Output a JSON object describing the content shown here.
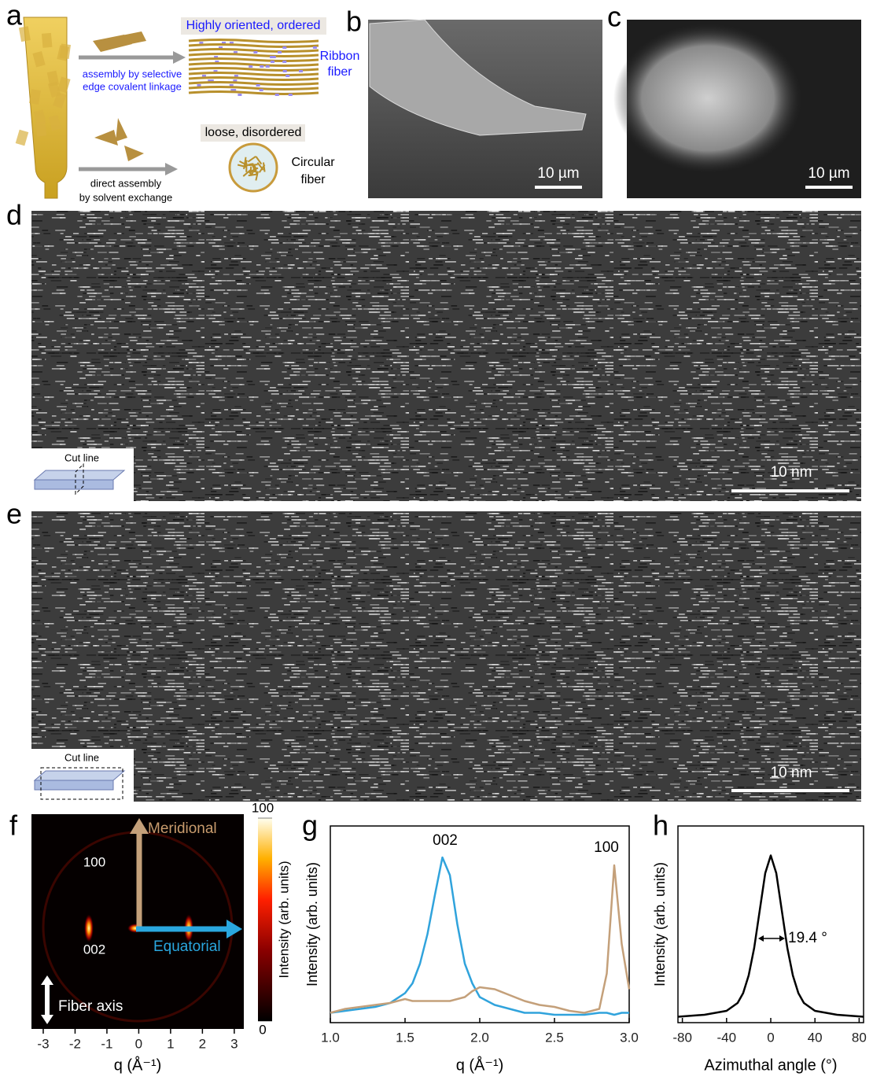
{
  "panels": {
    "a": {
      "label": "a",
      "ordered_title": "Highly oriented, ordered",
      "arrow1_lines": [
        "assembly by selective",
        "edge covalent linkage"
      ],
      "ribbon_lines": [
        "Ribbon",
        "fiber"
      ],
      "disordered_title": "loose, disordered",
      "arrow2_lines": [
        "direct assembly",
        "by solvent exchange"
      ],
      "circular_lines": [
        "Circular",
        "fiber"
      ]
    },
    "b": {
      "label": "b",
      "scale_bar": "10 µm"
    },
    "c": {
      "label": "c",
      "scale_bar": "10 µm"
    },
    "d": {
      "label": "d",
      "inset": "Cut line",
      "scale_bar": "10 nm"
    },
    "e": {
      "label": "e",
      "inset": "Cut line",
      "scale_bar": "10 nm"
    },
    "f": {
      "label": "f",
      "meridional": "Meridional",
      "ring": "100",
      "spot": "002",
      "equatorial": "Equatorial",
      "fiber_axis": "Fiber axis"
    },
    "g": {
      "label": "g"
    },
    "h": {
      "label": "h"
    }
  },
  "chart_data": [
    {
      "type": "image",
      "xlabel": "q (Å⁻¹)",
      "xlim": [
        -3.37,
        3.3
      ],
      "xticks": [
        -3,
        -2,
        -1,
        0,
        1,
        2,
        3
      ],
      "colorbar": {
        "label": "Intensity (arb. units)",
        "lim": [
          0,
          100
        ],
        "ticks": [
          0,
          100
        ]
      }
    },
    {
      "type": "line",
      "xlabel": "q (Å⁻¹)",
      "ylabel": "Intensity (arb. units)",
      "annotations": [
        "002",
        "100"
      ],
      "xlim": [
        1.0,
        3.0
      ],
      "ylim": [
        0,
        1
      ],
      "xticks": [
        {
          "value": 1.0,
          "label": "1.0"
        },
        1.5,
        {
          "value": 2.0,
          "label": "2.0"
        },
        2.5,
        {
          "value": 3.0,
          "label": "3.0"
        }
      ],
      "x": [
        1.0,
        1.1,
        1.2,
        1.3,
        1.4,
        1.5,
        1.55,
        1.6,
        1.65,
        1.7,
        1.75,
        1.8,
        1.85,
        1.9,
        1.95,
        2.0,
        2.1,
        2.2,
        2.3,
        2.4,
        2.5,
        2.6,
        2.7,
        2.8,
        2.85,
        2.9,
        2.95,
        3.0
      ],
      "series": [
        {
          "color": "#30a3dc",
          "values": [
            0.05,
            0.06,
            0.07,
            0.08,
            0.1,
            0.15,
            0.2,
            0.3,
            0.45,
            0.65,
            0.84,
            0.75,
            0.5,
            0.3,
            0.2,
            0.13,
            0.09,
            0.07,
            0.05,
            0.05,
            0.04,
            0.04,
            0.04,
            0.05,
            0.05,
            0.04,
            0.05,
            0.05
          ]
        },
        {
          "color": "#c4a07a",
          "values": [
            0.05,
            0.07,
            0.08,
            0.09,
            0.1,
            0.12,
            0.11,
            0.11,
            0.11,
            0.11,
            0.11,
            0.11,
            0.12,
            0.13,
            0.16,
            0.18,
            0.17,
            0.14,
            0.11,
            0.09,
            0.08,
            0.06,
            0.05,
            0.07,
            0.25,
            0.8,
            0.4,
            0.17
          ]
        }
      ]
    },
    {
      "type": "line",
      "xlabel": "Azimuthal angle (°)",
      "ylabel": "Intensity (arb. units)",
      "annotations": [
        "19.4 °"
      ],
      "xlim": [
        -84,
        84
      ],
      "ylim": [
        0,
        1
      ],
      "xticks": [
        -80,
        -40,
        0,
        40,
        80
      ],
      "x": [
        -84,
        -60,
        -40,
        -30,
        -25,
        -20,
        -15,
        -10,
        -5,
        0,
        5,
        10,
        15,
        20,
        25,
        30,
        40,
        60,
        84
      ],
      "series": [
        {
          "color": "#000000",
          "values": [
            0.03,
            0.04,
            0.06,
            0.1,
            0.15,
            0.24,
            0.38,
            0.57,
            0.76,
            0.85,
            0.76,
            0.57,
            0.38,
            0.24,
            0.15,
            0.1,
            0.06,
            0.04,
            0.03
          ]
        }
      ]
    }
  ]
}
